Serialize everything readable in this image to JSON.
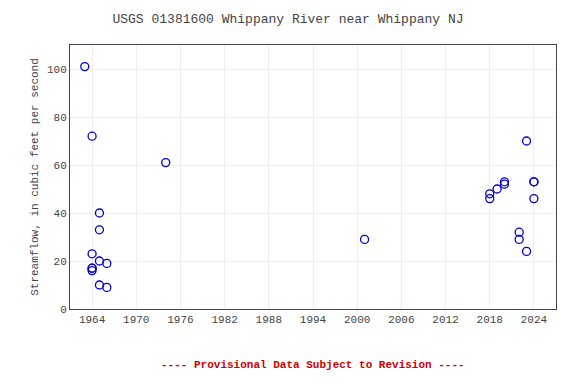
{
  "chart_data": {
    "type": "scatter",
    "title": "USGS 01381600 Whippany River near Whippany NJ",
    "y_label": "Streamflow, in cubic feet per second",
    "x": [
      1963,
      1964,
      1964,
      1964,
      1964,
      1964,
      1965,
      1965,
      1965,
      1965,
      1966,
      1966,
      1974,
      2001,
      2018,
      2018,
      2019,
      2020,
      2020,
      2022,
      2022,
      2023,
      2023,
      2024,
      2024,
      2024
    ],
    "values": [
      101,
      72,
      23,
      17,
      17,
      16,
      40,
      33,
      20,
      10,
      19,
      9,
      61,
      29,
      48,
      46,
      50,
      52,
      53,
      29,
      32,
      70,
      24,
      53,
      53,
      46
    ],
    "color": "#0000cc",
    "marker": "open_circle",
    "xlim": [
      1961,
      2027
    ],
    "ylim": [
      0,
      110
    ],
    "xticks": [
      1964,
      1970,
      1976,
      1982,
      1988,
      1994,
      2000,
      2006,
      2012,
      2018,
      2024
    ],
    "yticks": [
      0,
      20,
      40,
      60,
      80,
      100
    ],
    "grid": true,
    "annotations": [
      {
        "text": "---- Provisional Data Subject to Revision ----",
        "color": "#cc0000"
      }
    ]
  }
}
